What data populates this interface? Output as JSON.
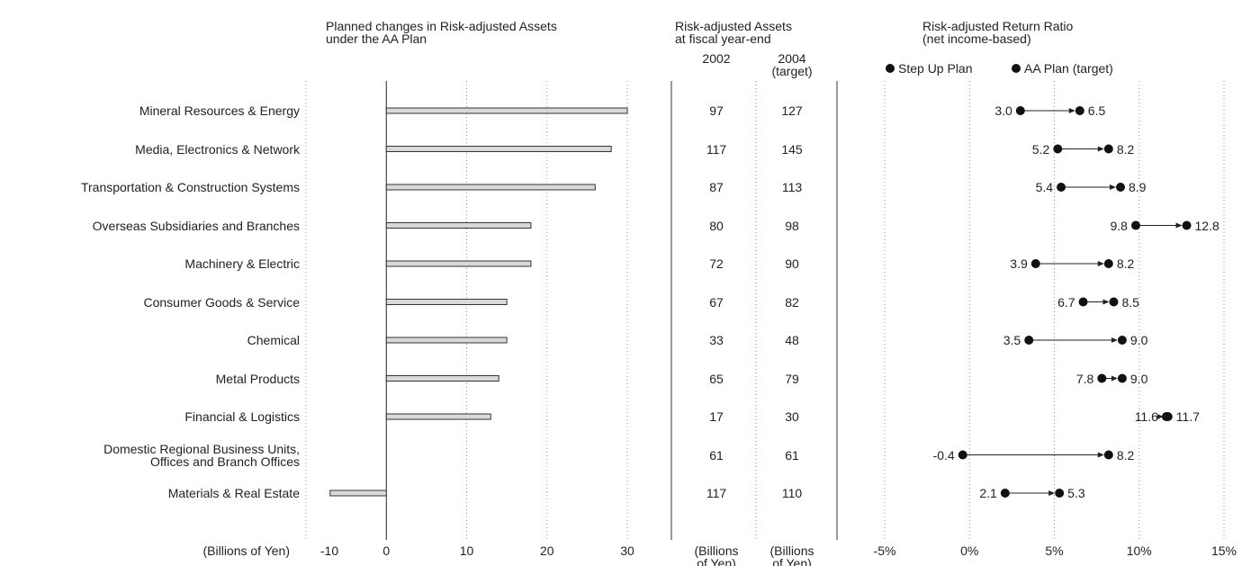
{
  "chart_data": [
    {
      "type": "bar",
      "orientation": "horizontal",
      "title": "Planned changes in Risk-adjusted Assets\nunder the AA Plan",
      "xlabel": "(Billions of Yen)",
      "categories": [
        "Mineral Resources & Energy",
        "Media, Electronics & Network",
        "Transportation & Construction Systems",
        "Overseas Subsidiaries and Branches",
        "Machinery & Electric",
        "Consumer Goods & Service",
        "Chemical",
        "Metal Products",
        "Financial & Logistics",
        "Domestic Regional Business Units,\nOffices and Branch Offices",
        "Materials & Real Estate"
      ],
      "values": [
        30,
        28,
        26,
        18,
        18,
        15,
        15,
        14,
        13,
        0,
        -7
      ],
      "color": "#d9d9d9",
      "xlim": [
        -10,
        30
      ],
      "xticks": [
        -10,
        0,
        10,
        20,
        30
      ],
      "grid": true
    },
    {
      "type": "dumbbell",
      "title": "Risk-adjusted Return Ratio\n(net income-based)",
      "series": [
        {
          "name": "Step Up Plan",
          "color": "#111111",
          "values": [
            3.0,
            5.2,
            5.4,
            9.8,
            3.9,
            6.7,
            3.5,
            7.8,
            11.6,
            -0.4,
            2.1
          ],
          "value_labels": [
            "3.0",
            "5.2",
            "5.4",
            "9.8",
            "3.9",
            "6.7",
            "3.5",
            "7.8",
            "11.6",
            "-0.4",
            "2.1"
          ]
        },
        {
          "name": "AA Plan (target)",
          "color": "#111111",
          "values": [
            6.5,
            8.2,
            8.9,
            12.8,
            8.2,
            8.5,
            9.0,
            9.0,
            11.7,
            8.2,
            5.3
          ],
          "value_labels": [
            "6.5",
            "8.2",
            "8.9",
            "12.8",
            "8.2",
            "8.5",
            "9.0",
            "9.0",
            "11.7",
            "8.2",
            "5.3"
          ]
        }
      ],
      "xlim": [
        -5,
        15
      ],
      "xticks": [
        {
          "value": -5,
          "label": "-5%"
        },
        {
          "value": 0,
          "label": "0%"
        },
        {
          "value": 5,
          "label": "5%"
        },
        {
          "value": 10,
          "label": "10%"
        },
        {
          "value": 15,
          "label": "15%"
        }
      ],
      "grid": true,
      "legend": "top"
    }
  ],
  "table": {
    "title": "Risk-adjusted Assets\nat fiscal year-end",
    "columns": [
      "2002",
      "2004\n(target)"
    ],
    "units": [
      "(Billions\nof Yen)",
      "(Billions\nof Yen)"
    ],
    "rows": [
      [
        97,
        127
      ],
      [
        117,
        145
      ],
      [
        87,
        113
      ],
      [
        80,
        98
      ],
      [
        72,
        90
      ],
      [
        67,
        82
      ],
      [
        33,
        48
      ],
      [
        65,
        79
      ],
      [
        17,
        30
      ],
      [
        61,
        61
      ],
      [
        117,
        110
      ]
    ]
  }
}
